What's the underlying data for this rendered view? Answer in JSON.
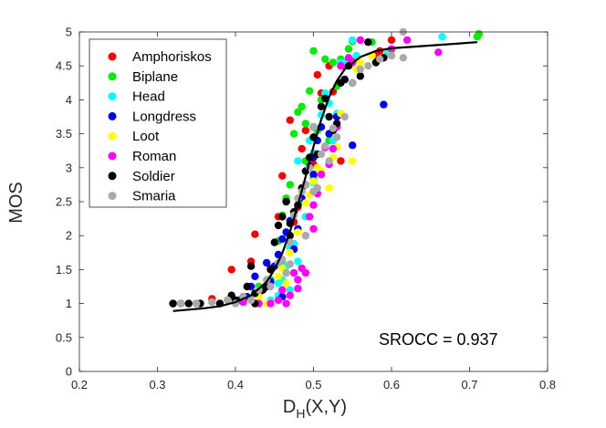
{
  "chart_data": {
    "type": "scatter",
    "title": "",
    "xlabel": "D",
    "xlabel_sub": "H",
    "xlabel_args": "(X,Y)",
    "ylabel": "MOS",
    "xlim": [
      0.2,
      0.8
    ],
    "ylim": [
      0,
      5
    ],
    "x_ticks": [
      "0.2",
      "0.3",
      "0.4",
      "0.5",
      "0.6",
      "0.7",
      "0.8"
    ],
    "y_ticks": [
      "0",
      "0.5",
      "1",
      "1.5",
      "2",
      "2.5",
      "3",
      "3.5",
      "4",
      "4.5",
      "5"
    ],
    "annotation": "SROCC = 0.937",
    "legend_position": "top-left",
    "fit_curve": {
      "type": "logistic",
      "points": [
        [
          0.32,
          0.89
        ],
        [
          0.34,
          0.91
        ],
        [
          0.36,
          0.93
        ],
        [
          0.38,
          0.96
        ],
        [
          0.4,
          1.02
        ],
        [
          0.42,
          1.12
        ],
        [
          0.44,
          1.32
        ],
        [
          0.45,
          1.5
        ],
        [
          0.46,
          1.74
        ],
        [
          0.47,
          2.06
        ],
        [
          0.48,
          2.45
        ],
        [
          0.49,
          2.87
        ],
        [
          0.5,
          3.31
        ],
        [
          0.51,
          3.71
        ],
        [
          0.52,
          4.04
        ],
        [
          0.53,
          4.28
        ],
        [
          0.54,
          4.45
        ],
        [
          0.56,
          4.63
        ],
        [
          0.58,
          4.72
        ],
        [
          0.6,
          4.76
        ],
        [
          0.65,
          4.8
        ],
        [
          0.71,
          4.85
        ]
      ]
    },
    "series": [
      {
        "name": "Amphoriskos",
        "color": "#ff0000",
        "points": [
          [
            0.32,
            1.0
          ],
          [
            0.35,
            1.0
          ],
          [
            0.37,
            1.07
          ],
          [
            0.395,
            1.5
          ],
          [
            0.42,
            1.62
          ],
          [
            0.425,
            2.02
          ],
          [
            0.445,
            1.52
          ],
          [
            0.455,
            2.28
          ],
          [
            0.46,
            2.88
          ],
          [
            0.465,
            2.5
          ],
          [
            0.47,
            3.7
          ],
          [
            0.48,
            2.42
          ],
          [
            0.485,
            3.28
          ],
          [
            0.49,
            3.55
          ],
          [
            0.505,
            4.37
          ],
          [
            0.51,
            4.1
          ],
          [
            0.52,
            4.5
          ],
          [
            0.525,
            4.12
          ],
          [
            0.535,
            3.1
          ],
          [
            0.54,
            4.5
          ],
          [
            0.555,
            4.62
          ],
          [
            0.58,
            4.65
          ],
          [
            0.585,
            4.72
          ],
          [
            0.6,
            4.88
          ],
          [
            0.44,
            1.25
          ],
          [
            0.5,
            3.05
          ],
          [
            0.475,
            2.2
          ],
          [
            0.43,
            1.15
          ]
        ]
      },
      {
        "name": "Biplane",
        "color": "#00ee00",
        "points": [
          [
            0.43,
            1.25
          ],
          [
            0.445,
            1.35
          ],
          [
            0.455,
            1.92
          ],
          [
            0.46,
            2.3
          ],
          [
            0.465,
            2.55
          ],
          [
            0.47,
            2.75
          ],
          [
            0.475,
            3.5
          ],
          [
            0.48,
            3.82
          ],
          [
            0.485,
            3.9
          ],
          [
            0.49,
            3.65
          ],
          [
            0.495,
            4.13
          ],
          [
            0.5,
            4.72
          ],
          [
            0.505,
            3.55
          ],
          [
            0.51,
            4.0
          ],
          [
            0.515,
            4.6
          ],
          [
            0.52,
            3.4
          ],
          [
            0.525,
            4.55
          ],
          [
            0.53,
            4.2
          ],
          [
            0.535,
            4.6
          ],
          [
            0.545,
            4.75
          ],
          [
            0.55,
            4.86
          ],
          [
            0.575,
            4.85
          ],
          [
            0.71,
            4.93
          ],
          [
            0.712,
            4.97
          ],
          [
            0.49,
            3.1
          ],
          [
            0.5,
            2.85
          ],
          [
            0.46,
            1.6
          ]
        ]
      },
      {
        "name": "Head",
        "color": "#00ffff",
        "points": [
          [
            0.415,
            1.1
          ],
          [
            0.43,
            1.0
          ],
          [
            0.445,
            1.05
          ],
          [
            0.455,
            1.12
          ],
          [
            0.46,
            1.35
          ],
          [
            0.465,
            1.55
          ],
          [
            0.47,
            1.82
          ],
          [
            0.475,
            1.88
          ],
          [
            0.48,
            3.1
          ],
          [
            0.485,
            2.5
          ],
          [
            0.49,
            2.28
          ],
          [
            0.495,
            3.4
          ],
          [
            0.5,
            3.22
          ],
          [
            0.505,
            3.0
          ],
          [
            0.51,
            3.78
          ],
          [
            0.515,
            4.1
          ],
          [
            0.52,
            3.95
          ],
          [
            0.525,
            3.4
          ],
          [
            0.53,
            3.8
          ],
          [
            0.535,
            4.55
          ],
          [
            0.54,
            4.55
          ],
          [
            0.55,
            4.88
          ],
          [
            0.555,
            4.65
          ],
          [
            0.595,
            4.68
          ],
          [
            0.665,
            4.93
          ],
          [
            0.47,
            1.2
          ],
          [
            0.48,
            1.62
          ],
          [
            0.5,
            2.78
          ],
          [
            0.455,
            1.3
          ]
        ]
      },
      {
        "name": "Longdress",
        "color": "#0000ff",
        "points": [
          [
            0.405,
            1.05
          ],
          [
            0.415,
            1.1
          ],
          [
            0.42,
            1.25
          ],
          [
            0.425,
            1.4
          ],
          [
            0.435,
            1.2
          ],
          [
            0.445,
            1.32
          ],
          [
            0.45,
            1.55
          ],
          [
            0.455,
            1.72
          ],
          [
            0.46,
            1.95
          ],
          [
            0.465,
            2.05
          ],
          [
            0.47,
            2.22
          ],
          [
            0.475,
            1.8
          ],
          [
            0.48,
            2.1
          ],
          [
            0.485,
            2.55
          ],
          [
            0.49,
            2.75
          ],
          [
            0.495,
            3.02
          ],
          [
            0.5,
            3.15
          ],
          [
            0.505,
            3.4
          ],
          [
            0.51,
            3.6
          ],
          [
            0.52,
            3.5
          ],
          [
            0.53,
            3.75
          ],
          [
            0.54,
            4.3
          ],
          [
            0.55,
            3.33
          ],
          [
            0.59,
            3.93
          ],
          [
            0.44,
            1.6
          ],
          [
            0.46,
            1.1
          ],
          [
            0.5,
            2.9
          ]
        ]
      },
      {
        "name": "Loot",
        "color": "#ffff00",
        "points": [
          [
            0.38,
            1.0
          ],
          [
            0.4,
            1.02
          ],
          [
            0.42,
            1.05
          ],
          [
            0.43,
            1.1
          ],
          [
            0.445,
            1.25
          ],
          [
            0.455,
            1.4
          ],
          [
            0.46,
            1.52
          ],
          [
            0.47,
            1.75
          ],
          [
            0.48,
            2.05
          ],
          [
            0.485,
            2.7
          ],
          [
            0.49,
            2.48
          ],
          [
            0.495,
            2.6
          ],
          [
            0.5,
            2.8
          ],
          [
            0.51,
            2.95
          ],
          [
            0.52,
            2.7
          ],
          [
            0.525,
            3.15
          ],
          [
            0.53,
            3.3
          ],
          [
            0.535,
            3.8
          ],
          [
            0.55,
            3.1
          ],
          [
            0.555,
            4.45
          ],
          [
            0.56,
            4.55
          ],
          [
            0.575,
            4.65
          ],
          [
            0.6,
            4.72
          ],
          [
            0.44,
            1.0
          ],
          [
            0.465,
            1.3
          ],
          [
            0.505,
            3.0
          ]
        ]
      },
      {
        "name": "Roman",
        "color": "#ff00ff",
        "points": [
          [
            0.41,
            1.02
          ],
          [
            0.43,
            1.0
          ],
          [
            0.445,
            1.0
          ],
          [
            0.455,
            1.05
          ],
          [
            0.465,
            1.0
          ],
          [
            0.47,
            1.12
          ],
          [
            0.475,
            1.45
          ],
          [
            0.48,
            1.35
          ],
          [
            0.485,
            1.52
          ],
          [
            0.49,
            2.0
          ],
          [
            0.495,
            2.28
          ],
          [
            0.5,
            2.45
          ],
          [
            0.505,
            2.62
          ],
          [
            0.51,
            2.9
          ],
          [
            0.515,
            3.3
          ],
          [
            0.52,
            3.05
          ],
          [
            0.525,
            3.28
          ],
          [
            0.53,
            3.6
          ],
          [
            0.535,
            4.5
          ],
          [
            0.545,
            4.62
          ],
          [
            0.55,
            4.55
          ],
          [
            0.56,
            4.88
          ],
          [
            0.6,
            4.75
          ],
          [
            0.62,
            4.88
          ],
          [
            0.66,
            4.7
          ],
          [
            0.48,
            1.22
          ],
          [
            0.49,
            1.45
          ],
          [
            0.46,
            1.2
          ],
          [
            0.5,
            2.1
          ]
        ]
      },
      {
        "name": "Soldier",
        "color": "#000000",
        "points": [
          [
            0.32,
            1.0
          ],
          [
            0.33,
            1.0
          ],
          [
            0.34,
            1.0
          ],
          [
            0.355,
            1.0
          ],
          [
            0.38,
            1.0
          ],
          [
            0.39,
            1.05
          ],
          [
            0.395,
            1.12
          ],
          [
            0.4,
            1.05
          ],
          [
            0.41,
            1.1
          ],
          [
            0.415,
            1.25
          ],
          [
            0.42,
            1.55
          ],
          [
            0.425,
            1.15
          ],
          [
            0.435,
            1.2
          ],
          [
            0.445,
            1.5
          ],
          [
            0.45,
            1.9
          ],
          [
            0.455,
            2.15
          ],
          [
            0.46,
            2.28
          ],
          [
            0.465,
            2.5
          ],
          [
            0.47,
            2.18
          ],
          [
            0.475,
            2.35
          ],
          [
            0.48,
            2.45
          ],
          [
            0.485,
            2.7
          ],
          [
            0.49,
            2.95
          ],
          [
            0.495,
            3.15
          ],
          [
            0.5,
            3.45
          ],
          [
            0.505,
            3.2
          ],
          [
            0.51,
            3.9
          ],
          [
            0.515,
            4.02
          ],
          [
            0.52,
            3.75
          ],
          [
            0.525,
            3.55
          ],
          [
            0.53,
            3.65
          ],
          [
            0.535,
            4.25
          ],
          [
            0.54,
            4.3
          ],
          [
            0.545,
            4.5
          ],
          [
            0.55,
            4.25
          ],
          [
            0.56,
            4.35
          ],
          [
            0.57,
            4.85
          ],
          [
            0.58,
            4.55
          ],
          [
            0.59,
            4.62
          ],
          [
            0.44,
            1.25
          ],
          [
            0.47,
            2.0
          ],
          [
            0.5,
            3.6
          ],
          [
            0.425,
            1.0
          ]
        ]
      },
      {
        "name": "Smaria",
        "color": "#aaaaaa",
        "points": [
          [
            0.33,
            1.0
          ],
          [
            0.35,
            1.0
          ],
          [
            0.37,
            1.02
          ],
          [
            0.39,
            1.05
          ],
          [
            0.4,
            1.0
          ],
          [
            0.41,
            1.1
          ],
          [
            0.42,
            1.05
          ],
          [
            0.43,
            1.2
          ],
          [
            0.44,
            1.35
          ],
          [
            0.445,
            1.25
          ],
          [
            0.455,
            1.6
          ],
          [
            0.46,
            1.65
          ],
          [
            0.465,
            1.45
          ],
          [
            0.47,
            1.58
          ],
          [
            0.475,
            2.3
          ],
          [
            0.48,
            2.55
          ],
          [
            0.485,
            2.65
          ],
          [
            0.49,
            2.75
          ],
          [
            0.495,
            3.0
          ],
          [
            0.5,
            2.65
          ],
          [
            0.505,
            2.7
          ],
          [
            0.51,
            3.2
          ],
          [
            0.515,
            3.32
          ],
          [
            0.52,
            3.1
          ],
          [
            0.525,
            3.58
          ],
          [
            0.53,
            3.45
          ],
          [
            0.54,
            3.75
          ],
          [
            0.55,
            4.25
          ],
          [
            0.56,
            4.45
          ],
          [
            0.57,
            4.5
          ],
          [
            0.585,
            4.6
          ],
          [
            0.6,
            4.65
          ],
          [
            0.615,
            4.62
          ],
          [
            0.615,
            5.0
          ],
          [
            0.49,
            2.0
          ],
          [
            0.47,
            1.9
          ],
          [
            0.5,
            3.6
          ]
        ]
      }
    ]
  }
}
